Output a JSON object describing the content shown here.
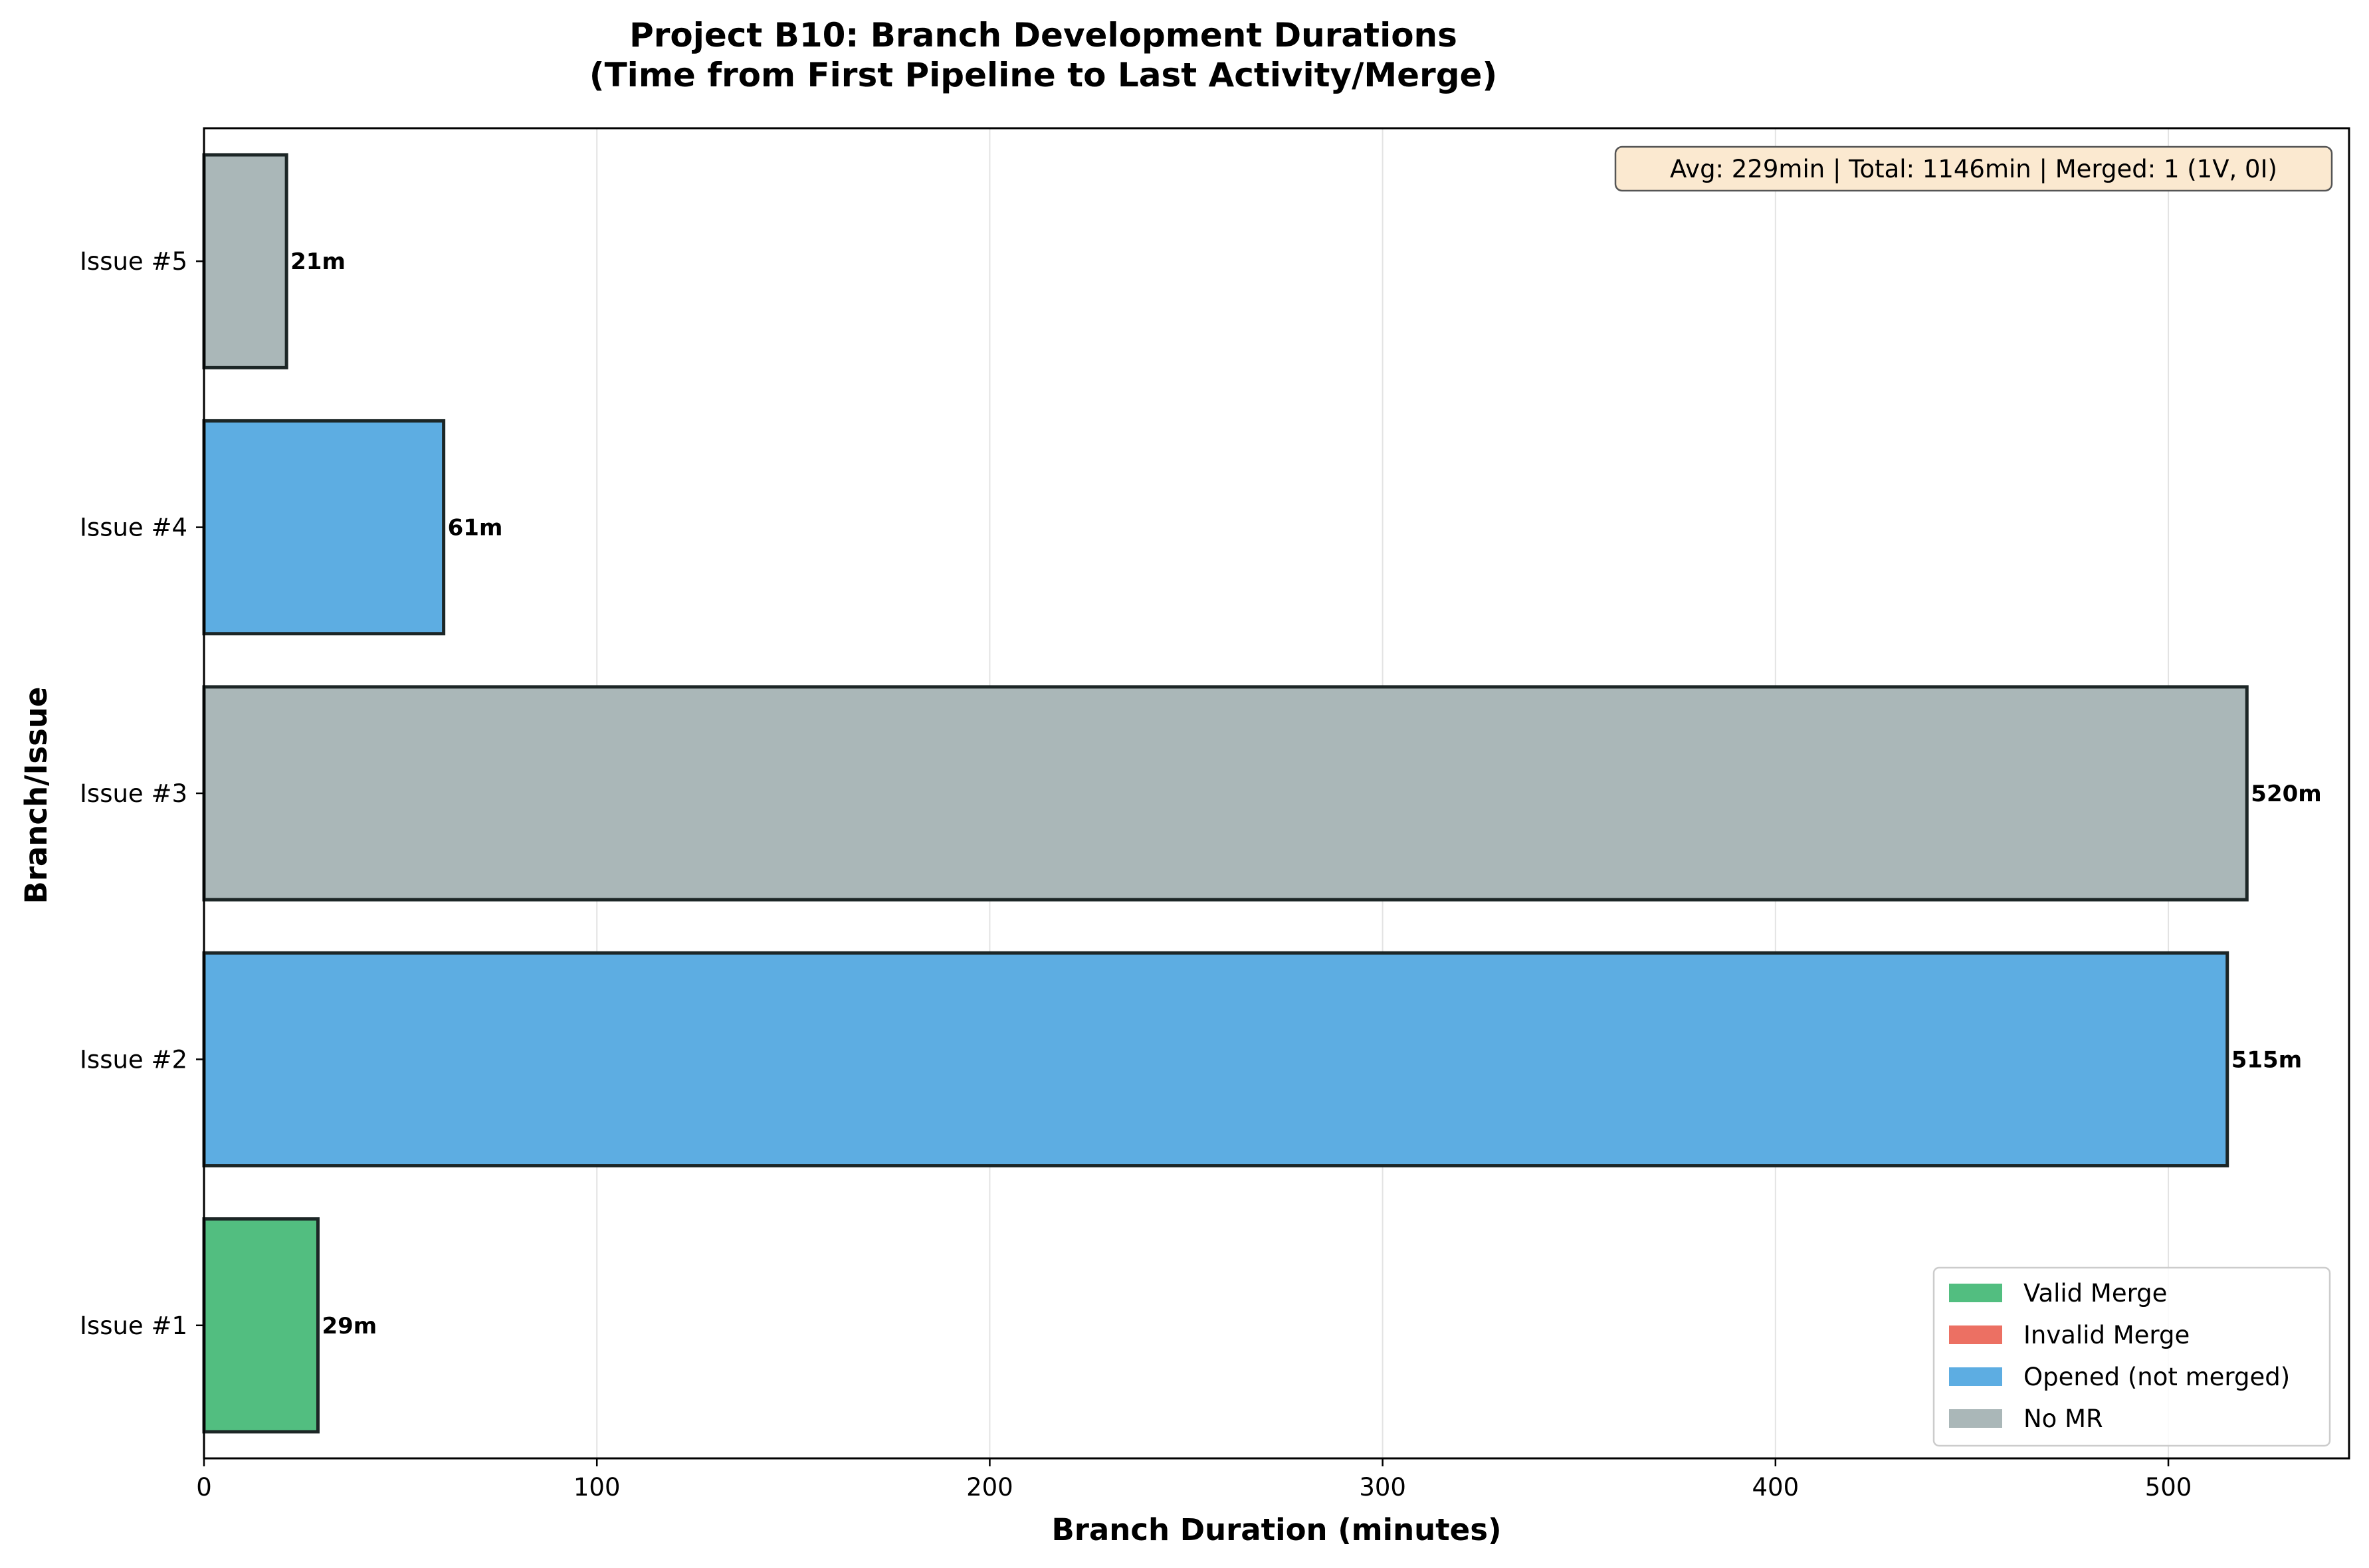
{
  "chart_data": {
    "type": "bar",
    "orientation": "horizontal",
    "title_line1": "Project B10: Branch Development Durations",
    "title_line2": "(Time from First Pipeline to Last Activity/Merge)",
    "xlabel": "Branch Duration (minutes)",
    "ylabel": "Branch/Issue",
    "xlim": [
      0,
      546
    ],
    "xticks": [
      0,
      100,
      200,
      300,
      400,
      500
    ],
    "grid": "vertical",
    "categories": [
      "Issue #1",
      "Issue #2",
      "Issue #3",
      "Issue #4",
      "Issue #5"
    ],
    "values": [
      29,
      515,
      520,
      61,
      21
    ],
    "value_labels": [
      "29m",
      "515m",
      "520m",
      "61m",
      "21m"
    ],
    "bar_status": [
      "Valid Merge",
      "Opened (not merged)",
      "No MR",
      "Opened (not merged)",
      "No MR"
    ],
    "stats_box": "Avg: 229min | Total: 1146min | Merged: 1 (1V, 0I)",
    "legend_position": "lower-right",
    "legend": [
      {
        "label": "Valid Merge",
        "color": "#52be80"
      },
      {
        "label": "Invalid Merge",
        "color": "#ec7063"
      },
      {
        "label": "Opened (not merged)",
        "color": "#5dade2"
      },
      {
        "label": "No MR",
        "color": "#aab7b8"
      }
    ]
  }
}
